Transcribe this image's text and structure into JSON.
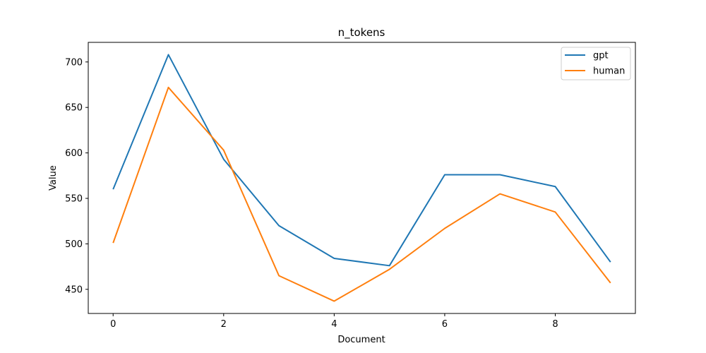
{
  "chart_data": {
    "type": "line",
    "title": "n_tokens",
    "xlabel": "Document",
    "ylabel": "Value",
    "x": [
      0,
      1,
      2,
      3,
      4,
      5,
      6,
      7,
      8,
      9
    ],
    "series": [
      {
        "name": "gpt",
        "color": "#1f77b4",
        "values": [
          560,
          708,
          593,
          520,
          484,
          476,
          576,
          576,
          563,
          480
        ]
      },
      {
        "name": "human",
        "color": "#ff7f0e",
        "values": [
          501,
          672,
          603,
          465,
          437,
          472,
          517,
          555,
          535,
          457
        ]
      }
    ],
    "xlim": [
      -0.45,
      9.45
    ],
    "ylim": [
      423.45,
      721.55
    ],
    "xticks": [
      0,
      2,
      4,
      6,
      8
    ],
    "yticks": [
      450,
      500,
      550,
      600,
      650,
      700
    ],
    "grid": false,
    "legend_position": "top-right"
  }
}
